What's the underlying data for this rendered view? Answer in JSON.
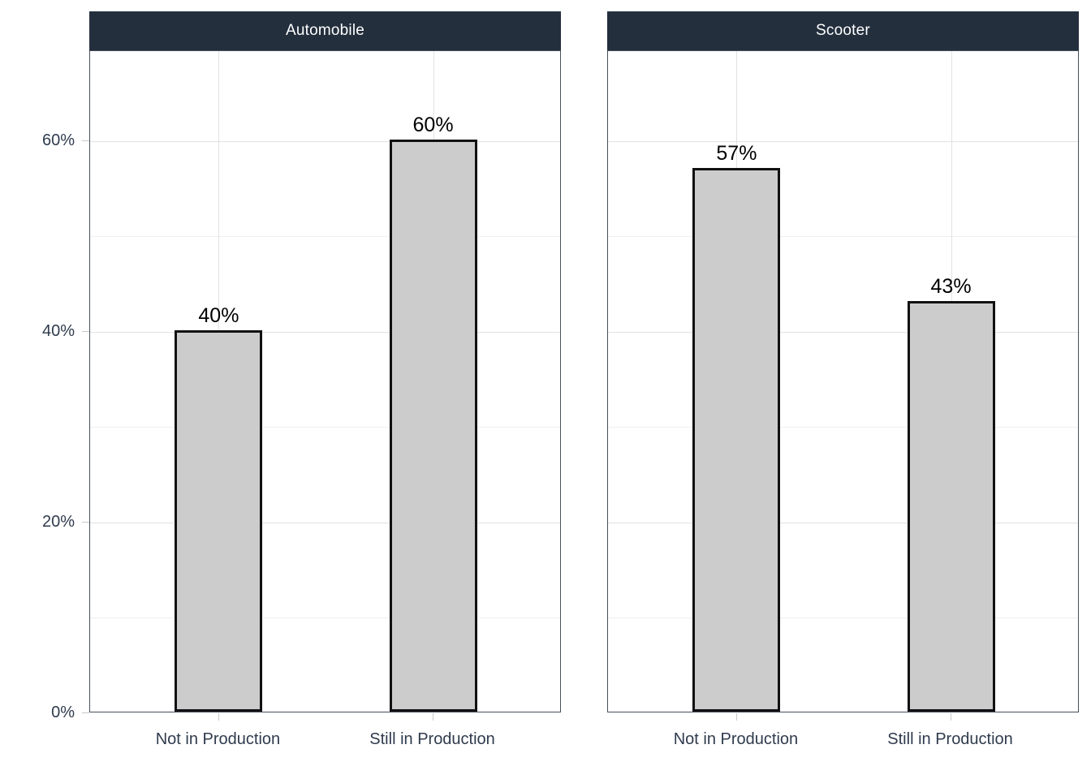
{
  "chart_data": {
    "type": "bar",
    "title": "",
    "xlabel": "",
    "ylabel": "",
    "legend": "none",
    "grid": true,
    "categories": [
      "Not in Production",
      "Still in Production"
    ],
    "facets": [
      {
        "title": "Automobile",
        "values": [
          40,
          60
        ],
        "labels": [
          "40%",
          "60%"
        ]
      },
      {
        "title": "Scooter",
        "values": [
          57,
          43
        ],
        "labels": [
          "57%",
          "43%"
        ]
      }
    ],
    "y_ticks": [
      {
        "value": 0,
        "label": "0%"
      },
      {
        "value": 20,
        "label": "20%"
      },
      {
        "value": 40,
        "label": "40%"
      },
      {
        "value": 60,
        "label": "60%"
      }
    ],
    "y_minor_ticks": [
      10,
      30,
      50
    ],
    "ylim": [
      0,
      69.4
    ],
    "colors": {
      "bar_fill": "#cccccc",
      "bar_border": "#111111",
      "strip_bg": "#242f3e",
      "strip_text": "#ffffff",
      "axis_text": "#2f3b4d",
      "value_label": "#000000",
      "grid_major": "#e2e2e2",
      "grid_minor": "#efefef",
      "panel_border": "#46505c"
    }
  }
}
